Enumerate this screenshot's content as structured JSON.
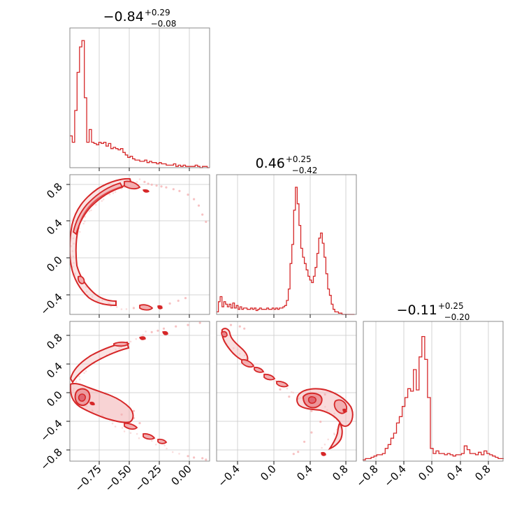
{
  "colors": {
    "accent": "#d62728",
    "contour_fill": "#f2aeb0",
    "scatter": "#f5b3b4"
  },
  "titles": {
    "p0": {
      "median": "−0.84",
      "plus": "+0.29",
      "minus": "−0.08"
    },
    "p1": {
      "median": "0.46",
      "plus": "+0.25",
      "minus": "−0.42"
    },
    "p2": {
      "median": "−0.11",
      "plus": "+0.25",
      "minus": "−0.20"
    }
  },
  "ticks": {
    "x0": [
      "−0.75",
      "−0.50",
      "−0.25",
      "0.00"
    ],
    "x1": [
      "−0.4",
      "0.0",
      "0.4",
      "0.8"
    ],
    "x2": [
      "−0.8",
      "−0.4",
      "0.0",
      "0.4",
      "0.8"
    ],
    "y1": [
      "0.8",
      "0.4",
      "0.0",
      "−0.4"
    ],
    "y2": [
      "0.8",
      "0.4",
      "0.0",
      "−0.4",
      "−0.8"
    ]
  },
  "chart_data": {
    "type": "corner",
    "panels": [
      {
        "panel": "hist-p0",
        "type": "histogram",
        "xlim": [
          -0.98,
          0.18
        ],
        "x": [
          -0.97,
          -0.95,
          -0.93,
          -0.91,
          -0.89,
          -0.87,
          -0.85,
          -0.83,
          -0.81,
          -0.79,
          -0.77,
          -0.75,
          -0.73,
          -0.71,
          -0.69,
          -0.67,
          -0.65,
          -0.63,
          -0.61,
          -0.59,
          -0.57,
          -0.55,
          -0.53,
          -0.51,
          -0.49,
          -0.47,
          -0.45,
          -0.43,
          -0.41,
          -0.39,
          -0.37,
          -0.35,
          -0.33,
          -0.31,
          -0.29,
          -0.27,
          -0.25,
          -0.23,
          -0.21,
          -0.19,
          -0.17,
          -0.15,
          -0.13,
          -0.11,
          -0.09,
          -0.07,
          -0.05,
          -0.03,
          -0.01,
          0.01,
          0.03,
          0.05,
          0.07,
          0.09,
          0.11,
          0.13,
          0.15,
          0.17
        ],
        "y": [
          0.25,
          0.2,
          0.45,
          0.75,
          0.95,
          1.0,
          0.55,
          0.2,
          0.3,
          0.2,
          0.19,
          0.18,
          0.2,
          0.19,
          0.2,
          0.17,
          0.19,
          0.15,
          0.16,
          0.15,
          0.14,
          0.15,
          0.12,
          0.1,
          0.08,
          0.09,
          0.07,
          0.06,
          0.06,
          0.05,
          0.05,
          0.06,
          0.04,
          0.05,
          0.04,
          0.04,
          0.03,
          0.04,
          0.03,
          0.03,
          0.02,
          0.02,
          0.02,
          0.03,
          0.01,
          0.02,
          0.01,
          0.02,
          0.01,
          0.01,
          0.01,
          0.01,
          0.02,
          0.01,
          0.0,
          0.01,
          0.01,
          0.0
        ]
      },
      {
        "panel": "hist-p1",
        "type": "histogram",
        "xlim": [
          -0.56,
          1.0
        ],
        "x": [
          -0.55,
          -0.53,
          -0.51,
          -0.49,
          -0.47,
          -0.45,
          -0.43,
          -0.41,
          -0.39,
          -0.37,
          -0.35,
          -0.33,
          -0.31,
          -0.29,
          -0.27,
          -0.25,
          -0.23,
          -0.21,
          -0.19,
          -0.17,
          -0.15,
          -0.13,
          -0.11,
          -0.09,
          -0.07,
          -0.05,
          -0.03,
          -0.01,
          0.01,
          0.03,
          0.05,
          0.07,
          0.09,
          0.11,
          0.13,
          0.15,
          0.17,
          0.19,
          0.21,
          0.23,
          0.25,
          0.27,
          0.29,
          0.31,
          0.33,
          0.35,
          0.37,
          0.39,
          0.41,
          0.43,
          0.45,
          0.47,
          0.49,
          0.51,
          0.53,
          0.55,
          0.57,
          0.59,
          0.61,
          0.63,
          0.65,
          0.67,
          0.69,
          0.71,
          0.73,
          0.75,
          0.77,
          0.79,
          0.81,
          0.83,
          0.85,
          0.87,
          0.89,
          0.91,
          0.93,
          0.95,
          0.97
        ],
        "y": [
          0.02,
          0.1,
          0.14,
          0.06,
          0.1,
          0.08,
          0.06,
          0.08,
          0.05,
          0.09,
          0.05,
          0.07,
          0.04,
          0.06,
          0.04,
          0.05,
          0.05,
          0.04,
          0.04,
          0.05,
          0.04,
          0.05,
          0.03,
          0.04,
          0.05,
          0.04,
          0.04,
          0.04,
          0.05,
          0.04,
          0.04,
          0.05,
          0.04,
          0.05,
          0.04,
          0.05,
          0.05,
          0.06,
          0.07,
          0.11,
          0.2,
          0.4,
          0.55,
          0.82,
          1.0,
          0.87,
          0.7,
          0.52,
          0.45,
          0.4,
          0.35,
          0.3,
          0.27,
          0.25,
          0.3,
          0.37,
          0.48,
          0.6,
          0.64,
          0.56,
          0.45,
          0.32,
          0.2,
          0.15,
          0.08,
          0.04,
          0.02,
          0.02,
          0.01,
          0.01,
          0.0,
          0.0,
          0.0,
          0.0,
          0.0,
          0.0,
          0.0
        ]
      },
      {
        "panel": "hist-p2",
        "type": "histogram",
        "xlim": [
          -0.98,
          1.0
        ],
        "x": [
          -0.97,
          -0.93,
          -0.89,
          -0.85,
          -0.81,
          -0.77,
          -0.73,
          -0.69,
          -0.65,
          -0.61,
          -0.57,
          -0.53,
          -0.49,
          -0.45,
          -0.41,
          -0.37,
          -0.33,
          -0.29,
          -0.25,
          -0.21,
          -0.17,
          -0.13,
          -0.09,
          -0.05,
          -0.01,
          0.03,
          0.07,
          0.11,
          0.15,
          0.19,
          0.23,
          0.27,
          0.31,
          0.35,
          0.39,
          0.43,
          0.47,
          0.51,
          0.55,
          0.59,
          0.63,
          0.67,
          0.71,
          0.75,
          0.79,
          0.83,
          0.87,
          0.91,
          0.95,
          0.99
        ],
        "y": [
          0.01,
          0.02,
          0.02,
          0.03,
          0.04,
          0.05,
          0.05,
          0.06,
          0.1,
          0.13,
          0.18,
          0.22,
          0.3,
          0.35,
          0.43,
          0.5,
          0.57,
          0.55,
          0.72,
          0.56,
          0.82,
          0.98,
          0.8,
          0.5,
          0.1,
          0.06,
          0.08,
          0.06,
          0.06,
          0.05,
          0.06,
          0.05,
          0.04,
          0.05,
          0.05,
          0.06,
          0.12,
          0.09,
          0.06,
          0.06,
          0.05,
          0.07,
          0.05,
          0.08,
          0.06,
          0.05,
          0.04,
          0.03,
          0.02,
          0.02
        ]
      },
      {
        "panel": "scatter-p1-vs-p0",
        "type": "2d-density",
        "xlim": [
          -0.98,
          0.18
        ],
        "ylim": [
          -0.62,
          0.92
        ],
        "band_center": [
          [
            -0.4,
            0.85
          ],
          [
            -0.55,
            0.78
          ],
          [
            -0.7,
            0.65
          ],
          [
            -0.82,
            0.5
          ],
          [
            -0.9,
            0.35
          ],
          [
            -0.95,
            0.15
          ],
          [
            -0.97,
            0.0
          ],
          [
            -0.94,
            -0.15
          ],
          [
            -0.88,
            -0.3
          ],
          [
            -0.8,
            -0.42
          ],
          [
            -0.7,
            -0.5
          ],
          [
            -0.6,
            -0.54
          ],
          [
            -0.5,
            -0.55
          ]
        ],
        "scatter": [
          [
            -0.36,
            0.84
          ],
          [
            -0.33,
            0.82
          ],
          [
            -0.3,
            0.81
          ],
          [
            -0.26,
            0.8
          ],
          [
            -0.22,
            0.79
          ],
          [
            -0.18,
            0.78
          ],
          [
            -0.12,
            0.76
          ],
          [
            -0.07,
            0.74
          ],
          [
            0.0,
            0.7
          ],
          [
            0.05,
            0.65
          ],
          [
            0.09,
            0.58
          ],
          [
            0.12,
            0.48
          ],
          [
            0.15,
            0.4
          ],
          [
            -0.45,
            -0.55
          ],
          [
            -0.38,
            -0.56
          ],
          [
            -0.3,
            -0.55
          ],
          [
            -0.22,
            -0.53
          ],
          [
            -0.15,
            -0.5
          ],
          [
            -0.08,
            -0.47
          ],
          [
            -0.02,
            -0.44
          ]
        ]
      },
      {
        "panel": "scatter-p2-vs-p0",
        "type": "2d-density",
        "xlim": [
          -0.98,
          0.18
        ],
        "ylim": [
          -0.95,
          1.0
        ],
        "band_center": [
          [
            -0.35,
            0.84
          ],
          [
            -0.5,
            0.7
          ],
          [
            -0.65,
            0.55
          ],
          [
            -0.8,
            0.4
          ],
          [
            -0.9,
            0.25
          ],
          [
            -0.95,
            0.05
          ],
          [
            -0.9,
            -0.1
          ],
          [
            -0.8,
            -0.22
          ],
          [
            -0.7,
            -0.35
          ],
          [
            -0.55,
            -0.48
          ],
          [
            -0.4,
            -0.62
          ],
          [
            -0.2,
            -0.75
          ],
          [
            -0.05,
            -0.86
          ]
        ],
        "scatter": [
          [
            -0.3,
            0.85
          ],
          [
            -0.25,
            0.87
          ],
          [
            -0.2,
            0.9
          ],
          [
            -0.1,
            0.93
          ],
          [
            0.0,
            0.95
          ],
          [
            0.1,
            0.98
          ],
          [
            -0.55,
            -0.3
          ],
          [
            -0.45,
            -0.35
          ],
          [
            -0.4,
            -0.42
          ],
          [
            -0.45,
            -0.25
          ],
          [
            0.0,
            -0.88
          ],
          [
            0.05,
            -0.9
          ],
          [
            0.12,
            -0.91
          ],
          [
            0.15,
            -0.93
          ]
        ]
      },
      {
        "panel": "scatter-p2-vs-p1",
        "type": "2d-density",
        "xlim": [
          -0.56,
          1.0
        ],
        "ylim": [
          -0.95,
          1.0
        ],
        "band_center": [
          [
            -0.5,
            0.85
          ],
          [
            -0.45,
            0.7
          ],
          [
            -0.3,
            0.55
          ],
          [
            -0.15,
            0.38
          ],
          [
            0.0,
            0.25
          ],
          [
            0.15,
            0.12
          ],
          [
            0.3,
            0.0
          ],
          [
            0.45,
            -0.1
          ],
          [
            0.6,
            -0.18
          ],
          [
            0.75,
            -0.28
          ],
          [
            0.82,
            -0.45
          ],
          [
            0.75,
            -0.6
          ],
          [
            0.55,
            -0.8
          ]
        ],
        "scatter": [
          [
            -0.4,
            0.95
          ],
          [
            -0.3,
            0.93
          ],
          [
            -0.25,
            0.9
          ],
          [
            0.15,
            0.05
          ],
          [
            0.25,
            -0.05
          ],
          [
            0.35,
            -0.08
          ],
          [
            0.5,
            -0.25
          ],
          [
            0.6,
            -0.4
          ],
          [
            0.5,
            -0.55
          ],
          [
            0.42,
            -0.68
          ],
          [
            0.35,
            -0.82
          ],
          [
            0.3,
            -0.85
          ],
          [
            0.55,
            -0.05
          ],
          [
            0.65,
            -0.02
          ]
        ]
      }
    ]
  }
}
